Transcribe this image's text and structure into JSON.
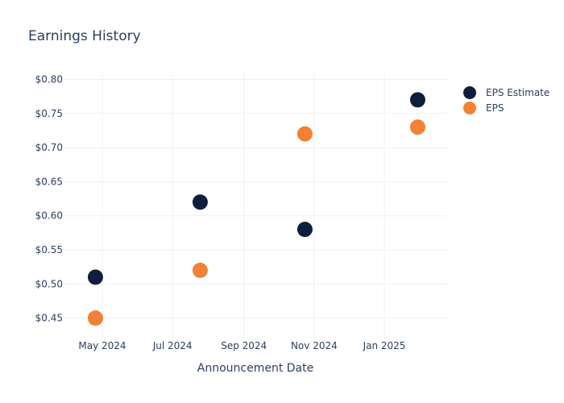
{
  "chart_data": {
    "type": "scatter",
    "title": "Earnings History",
    "xlabel": "Announcement Date",
    "ylabel": "",
    "x_ticks": [
      "May 2024",
      "Jul 2024",
      "Sep 2024",
      "Nov 2024",
      "Jan 2025"
    ],
    "y_ticks": [
      "$0.45",
      "$0.50",
      "$0.55",
      "$0.60",
      "$0.65",
      "$0.70",
      "$0.75",
      "$0.80"
    ],
    "ylim": [
      0.42,
      0.81
    ],
    "x": [
      "2024-04-25",
      "2024-07-25",
      "2024-10-24",
      "2025-01-30"
    ],
    "series": [
      {
        "name": "EPS Estimate",
        "color": "#0d1f3c",
        "values": [
          0.51,
          0.62,
          0.58,
          0.77
        ]
      },
      {
        "name": "EPS",
        "color": "#f28035",
        "values": [
          0.45,
          0.52,
          0.72,
          0.73
        ]
      }
    ],
    "legend_position": "top-right",
    "grid": true
  }
}
